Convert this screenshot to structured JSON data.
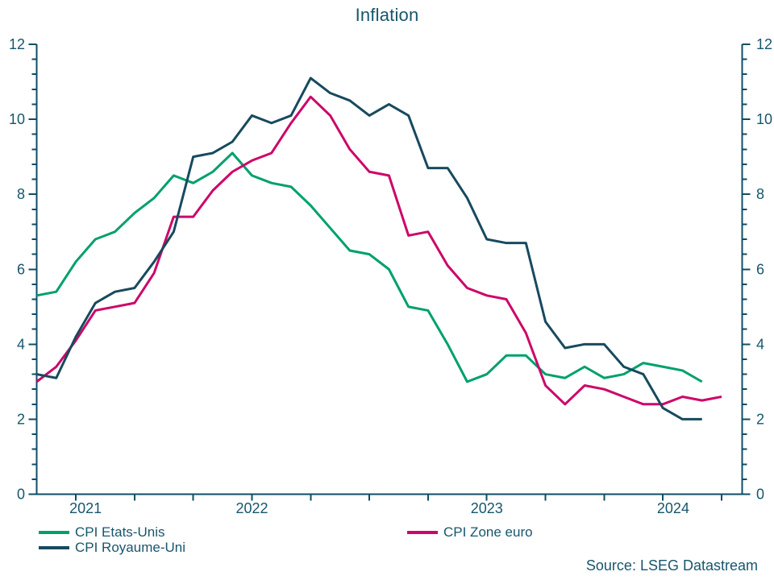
{
  "title": "Inflation",
  "source": "Source: LSEG Datastream",
  "colors": {
    "background": "#FFFFFF",
    "text": "#17566C",
    "axis": "#0F4D64",
    "cpi_us": "#00A06C",
    "cpi_uk": "#174A5E",
    "cpi_euro": "#CC0769"
  },
  "legend": {
    "items": [
      {
        "label": "CPI Etats-Unis"
      },
      {
        "label": "CPI Royaume-Uni"
      },
      {
        "label": "CPI Zone euro"
      }
    ]
  },
  "chart_data": {
    "type": "line",
    "title": "Inflation",
    "xlabel": "",
    "ylabel": "",
    "ylim": [
      0,
      12
    ],
    "y_major_ticks": [
      0,
      2,
      4,
      6,
      8,
      10,
      12
    ],
    "y_minor_step": 0.4,
    "dual_y_axis": true,
    "grid": false,
    "legend_position": "bottom-left",
    "x_unit": "month",
    "x": [
      "2021-08",
      "2021-09",
      "2021-10",
      "2021-11",
      "2021-12",
      "2022-01",
      "2022-02",
      "2022-03",
      "2022-04",
      "2022-05",
      "2022-06",
      "2022-07",
      "2022-08",
      "2022-09",
      "2022-10",
      "2022-11",
      "2022-12",
      "2023-01",
      "2023-02",
      "2023-03",
      "2023-04",
      "2023-05",
      "2023-06",
      "2023-07",
      "2023-08",
      "2023-09",
      "2023-10",
      "2023-11",
      "2023-12",
      "2024-01",
      "2024-02",
      "2024-03",
      "2024-04",
      "2024-05",
      "2024-06",
      "2024-07"
    ],
    "x_axis_year_labels": [
      "2021",
      "2022",
      "2023",
      "2024"
    ],
    "x_major_tick_start_index": 2,
    "x_major_tick_step_months": 3,
    "series": [
      {
        "name": "CPI Etats-Unis",
        "color": "#00A06C",
        "values": [
          5.3,
          5.4,
          6.2,
          6.8,
          7.0,
          7.5,
          7.9,
          8.5,
          8.3,
          8.6,
          9.1,
          8.5,
          8.3,
          8.2,
          7.7,
          7.1,
          6.5,
          6.4,
          6.0,
          5.0,
          4.9,
          4.0,
          3.0,
          3.2,
          3.7,
          3.7,
          3.2,
          3.1,
          3.4,
          3.1,
          3.2,
          3.5,
          3.4,
          3.3,
          3.0
        ]
      },
      {
        "name": "CPI Zone euro",
        "color": "#CC0769",
        "values": [
          3.0,
          3.4,
          4.1,
          4.9,
          5.0,
          5.1,
          5.9,
          7.4,
          7.4,
          8.1,
          8.6,
          8.9,
          9.1,
          9.9,
          10.6,
          10.1,
          9.2,
          8.6,
          8.5,
          6.9,
          7.0,
          6.1,
          5.5,
          5.3,
          5.2,
          4.3,
          2.9,
          2.4,
          2.9,
          2.8,
          2.6,
          2.4,
          2.4,
          2.6,
          2.5,
          2.6
        ]
      },
      {
        "name": "CPI Royaume-Uni",
        "color": "#174A5E",
        "values": [
          3.2,
          3.1,
          4.2,
          5.1,
          5.4,
          5.5,
          6.2,
          7.0,
          9.0,
          9.1,
          9.4,
          10.1,
          9.9,
          10.1,
          11.1,
          10.7,
          10.5,
          10.1,
          10.4,
          10.1,
          8.7,
          8.7,
          7.9,
          6.8,
          6.7,
          6.7,
          4.6,
          3.9,
          4.0,
          4.0,
          3.4,
          3.2,
          2.3,
          2.0,
          2.0
        ]
      }
    ]
  }
}
